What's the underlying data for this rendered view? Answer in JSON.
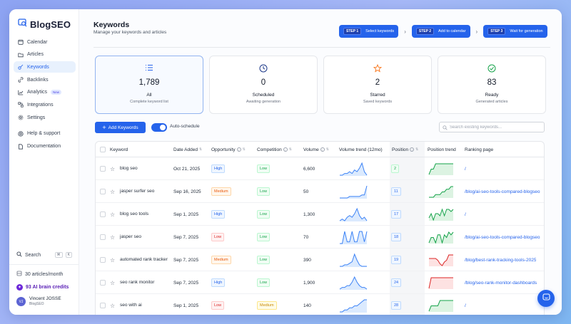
{
  "app": {
    "name": "BlogSEO"
  },
  "sidebar": {
    "items": [
      {
        "label": "Calendar",
        "icon": "calendar-icon"
      },
      {
        "label": "Articles",
        "icon": "folder-icon"
      },
      {
        "label": "Keywords",
        "icon": "key-icon",
        "active": true
      },
      {
        "label": "Backlinks",
        "icon": "link-icon"
      },
      {
        "label": "Analytics",
        "icon": "chart-icon",
        "badge": "New"
      },
      {
        "label": "Integrations",
        "icon": "integrations-icon"
      },
      {
        "label": "Settings",
        "icon": "gear-icon"
      }
    ],
    "secondary": [
      {
        "label": "Help & support",
        "icon": "help-icon"
      },
      {
        "label": "Documentation",
        "icon": "document-icon"
      }
    ],
    "search": {
      "label": "Search",
      "shortcut_mod": "⌘",
      "shortcut_key": "K"
    },
    "articles_quota": "30 articles/month",
    "credits": "93 AI brain credits",
    "user": {
      "name": "Vincent JOSSE",
      "org": "BlogSEO",
      "initials": "VJ"
    }
  },
  "header": {
    "title": "Keywords",
    "subtitle": "Manage your keywords and articles",
    "steps": [
      {
        "tag": "STEP 1",
        "label": "Select keywords"
      },
      {
        "tag": "STEP 2",
        "label": "Add to calendar"
      },
      {
        "tag": "STEP 3",
        "label": "Wait for generation"
      }
    ]
  },
  "cards": [
    {
      "value": "1,789",
      "label": "All",
      "sub": "Complete keyword list",
      "icon": "list-icon",
      "color": "#2563eb"
    },
    {
      "value": "0",
      "label": "Scheduled",
      "sub": "Awaiting generation",
      "icon": "clock-icon",
      "color": "#1e3a8a"
    },
    {
      "value": "2",
      "label": "Starred",
      "sub": "Saved keywords",
      "icon": "star-icon",
      "color": "#f97316"
    },
    {
      "value": "83",
      "label": "Ready",
      "sub": "Generated articles",
      "icon": "check-circle-icon",
      "color": "#16a34a"
    }
  ],
  "toolbar": {
    "add_label": "Add Keywords",
    "toggle_label": "Auto-schedule",
    "toggle_on": true,
    "search_placeholder": "Search existing keywords..."
  },
  "table": {
    "columns": [
      "Keyword",
      "Date Added",
      "Opportunity",
      "Competition",
      "Volume",
      "Volume trend (12mo)",
      "Position",
      "Position trend",
      "Ranking page"
    ],
    "rows": [
      {
        "keyword": "blog seo",
        "date": "Oct 21, 2025",
        "opportunity": "High",
        "competition": "Low",
        "volume": "6,600",
        "position": "2",
        "page": "/",
        "trend": [
          2,
          2,
          3,
          3,
          4,
          3,
          5,
          4,
          6,
          9,
          4,
          2
        ],
        "pos_trend": [
          6,
          7,
          7,
          8,
          8,
          8,
          8,
          8,
          8,
          8,
          8,
          8
        ],
        "pos_color": "#16a34a",
        "pos_green": true
      },
      {
        "keyword": "jasper surfer seo",
        "date": "Sep 16, 2025",
        "opportunity": "Medium",
        "competition": "Low",
        "volume": "50",
        "position": "11",
        "page": "/blog/ai-seo-tools-compared-blogseo",
        "trend": [
          1,
          1,
          1,
          1,
          2,
          2,
          2,
          2,
          2,
          3,
          3,
          9
        ],
        "pos_trend": [
          2,
          2,
          2,
          3,
          3,
          3,
          4,
          4,
          5,
          5,
          6,
          6
        ],
        "pos_color": "#16a34a",
        "pos_green": false
      },
      {
        "keyword": "blog seo tools",
        "date": "Sep 1, 2025",
        "opportunity": "High",
        "competition": "Low",
        "volume": "1,300",
        "position": "17",
        "page": "/",
        "trend": [
          2,
          3,
          2,
          4,
          5,
          4,
          6,
          9,
          5,
          3,
          4,
          2
        ],
        "pos_trend": [
          4,
          6,
          3,
          6,
          6,
          5,
          8,
          5,
          8,
          8,
          7,
          8
        ],
        "pos_color": "#16a34a",
        "pos_green": false
      },
      {
        "keyword": "jasper seo",
        "date": "Sep 7, 2025",
        "opportunity": "Low",
        "competition": "Low",
        "volume": "70",
        "position": "18",
        "page": "/blog/ai-seo-tools-compared-blogseo",
        "trend": [
          1,
          1,
          8,
          2,
          2,
          8,
          2,
          2,
          8,
          8,
          2,
          8
        ],
        "pos_trend": [
          3,
          5,
          5,
          3,
          6,
          6,
          3,
          6,
          5,
          7,
          6,
          7
        ],
        "pos_color": "#16a34a",
        "pos_green": false
      },
      {
        "keyword": "automated rank tracker",
        "date": "Sep 7, 2025",
        "opportunity": "Medium",
        "competition": "Low",
        "volume": "390",
        "position": "19",
        "page": "/blog/best-rank-tracking-tools-2025",
        "trend": [
          1,
          1,
          2,
          2,
          3,
          4,
          9,
          5,
          2,
          1,
          1,
          1
        ],
        "pos_trend": [
          6,
          6,
          6,
          6,
          5,
          3,
          2,
          4,
          5,
          8,
          8,
          8
        ],
        "pos_color": "#dc2626",
        "pos_green": false
      },
      {
        "keyword": "seo rank monitor",
        "date": "Sep 7, 2025",
        "opportunity": "High",
        "competition": "Low",
        "volume": "1,900",
        "position": "24",
        "page": "/blog/seo-rank-monitor-dashboards",
        "trend": [
          2,
          3,
          3,
          4,
          4,
          6,
          9,
          6,
          4,
          3,
          3,
          2
        ],
        "pos_trend": [
          3,
          8,
          8,
          8,
          8,
          8,
          8,
          8,
          8,
          8,
          8,
          8
        ],
        "pos_color": "#dc2626",
        "pos_green": false
      },
      {
        "keyword": "seo with ai",
        "date": "Sep 1, 2025",
        "opportunity": "Low",
        "competition": "Medium",
        "volume": "140",
        "position": "28",
        "page": "/",
        "trend": [
          2,
          2,
          3,
          3,
          4,
          4,
          5,
          5,
          6,
          7,
          8,
          8
        ],
        "pos_trend": [
          4,
          5,
          5,
          5,
          5,
          6,
          6,
          6,
          6,
          6,
          6,
          6
        ],
        "pos_color": "#16a34a",
        "pos_green": false
      }
    ]
  },
  "colors": {
    "accent": "#2563eb"
  }
}
